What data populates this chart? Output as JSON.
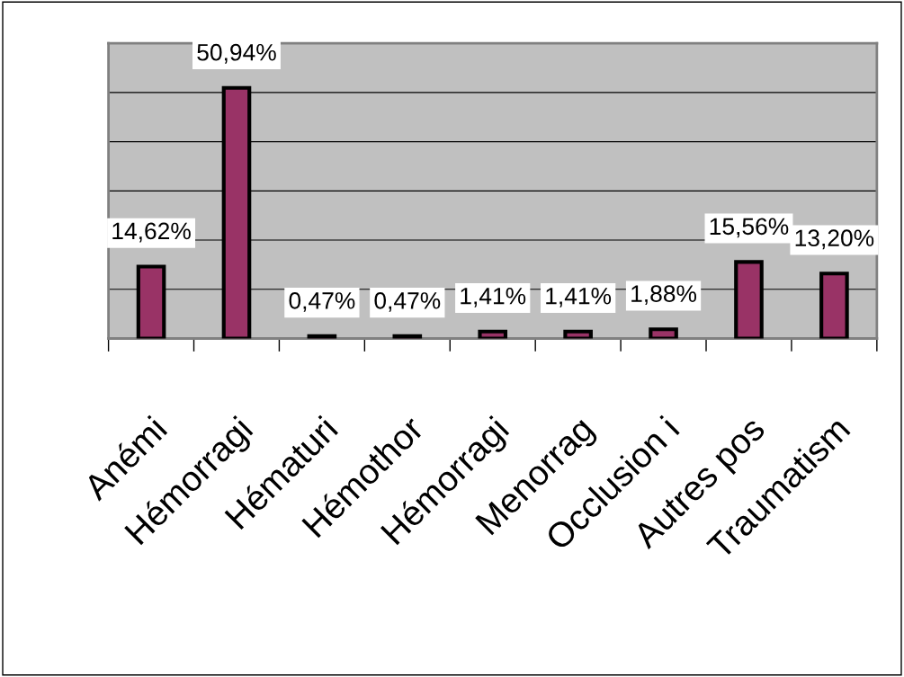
{
  "chart_data": {
    "type": "bar",
    "categories": [
      "Anémi",
      "Hémorragi",
      "Hématuri",
      "Hémothor",
      "Hémorragi",
      "Menorrag",
      "Occlusion i",
      "Autres pos",
      "Traumatism"
    ],
    "values": [
      14.62,
      50.94,
      0.47,
      0.47,
      1.41,
      1.41,
      1.88,
      15.56,
      13.2
    ],
    "value_labels": [
      "14,62%",
      "50,94%",
      "0,47%",
      "0,47%",
      "1,41%",
      "1,41%",
      "1,88%",
      "15,56%",
      "13,20%"
    ],
    "color": "#993366",
    "ylim": [
      0,
      60
    ],
    "yticks": [
      {
        "value": 0,
        "label": null
      },
      {
        "value": 10,
        "label": null
      },
      {
        "value": 20,
        "label": null
      },
      {
        "value": 30,
        "label": null
      },
      {
        "value": 40,
        "label": null
      },
      {
        "value": 50,
        "label": null
      },
      {
        "value": 60,
        "label": null
      }
    ],
    "grid": "y",
    "tick_labels": "x",
    "legend": false
  }
}
